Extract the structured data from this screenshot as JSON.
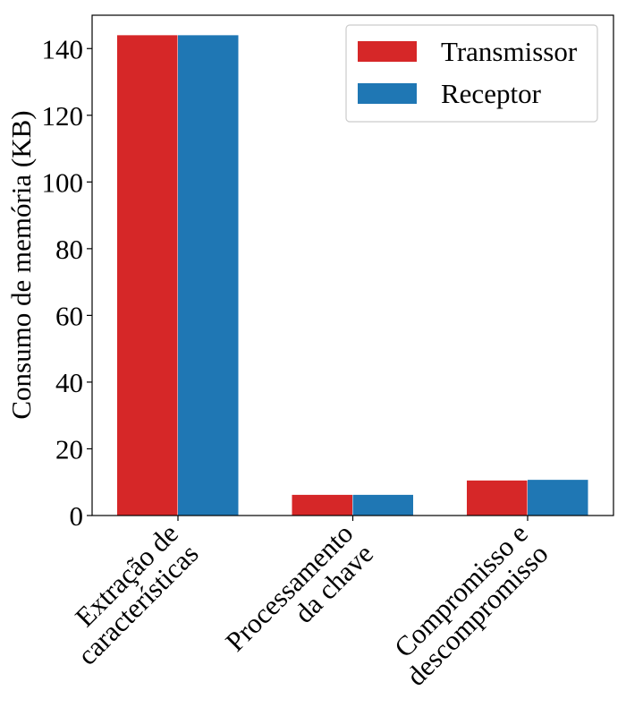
{
  "chart_data": {
    "type": "bar",
    "categories": [
      [
        "Extração de",
        "características"
      ],
      [
        "Processamento",
        "da chave"
      ],
      [
        "Compromisso e",
        "descompromisso"
      ]
    ],
    "series": [
      {
        "name": "Transmissor",
        "values": [
          144,
          6.2,
          10.5
        ],
        "color": "#d62728"
      },
      {
        "name": "Receptor",
        "values": [
          144,
          6.2,
          10.7
        ],
        "color": "#1f77b4"
      }
    ],
    "ylabel": "Consumo de memória (KB)",
    "xlabel": "",
    "ylim": [
      0,
      150
    ],
    "yticks": [
      0,
      20,
      40,
      60,
      80,
      100,
      120,
      140
    ],
    "grid": false,
    "legend_position": "top-right"
  }
}
